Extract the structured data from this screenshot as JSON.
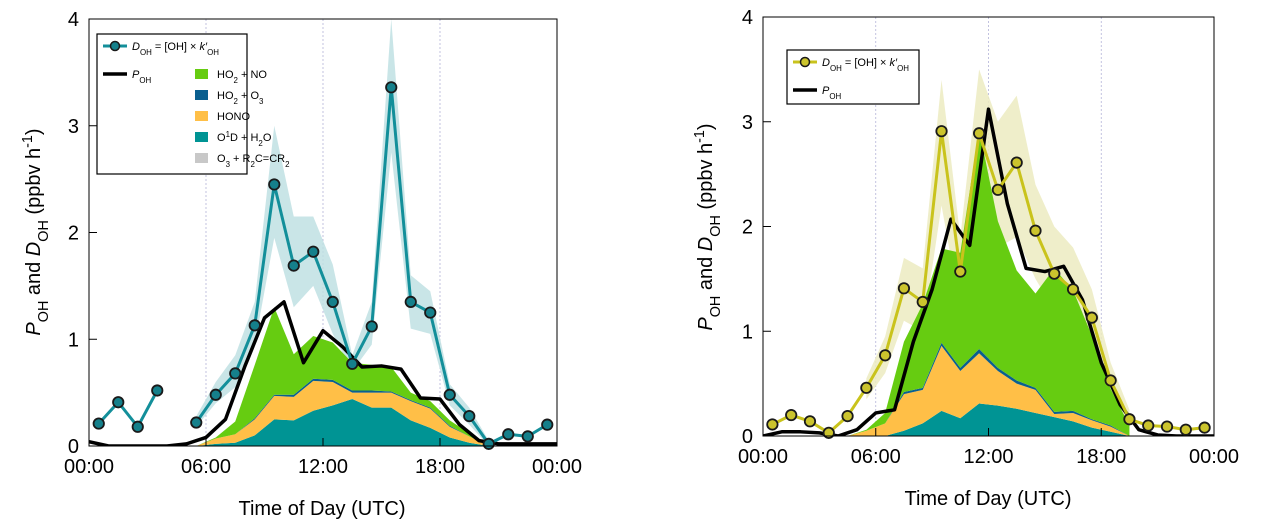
{
  "colors": {
    "left_dOH": "#138f9a",
    "left_dOH_band": "#bfe1e3",
    "left_marker_fill": "#15808b",
    "right_dOH": "#c9c31c",
    "right_dOH_band": "#ecebc1",
    "right_marker_fill": "#cbc42d",
    "pOH": "#000000",
    "ho2_no": "#66cc11",
    "ho2_o3": "#0a5f8f",
    "hono": "#ffbf47",
    "o1d_h2o": "#009494",
    "o3_alkene": "#c8c8c8",
    "grid": "#b4b4d8"
  },
  "chart_data": [
    {
      "type": "area",
      "xlabel": "Time of Day (UTC)",
      "ylabel_parts": [
        "P",
        "OH",
        " and ",
        "D",
        "OH",
        " (ppbv h",
        "-1",
        ")"
      ],
      "xlim": [
        0,
        24
      ],
      "ylim": [
        0,
        4
      ],
      "xticks": [
        0,
        6,
        12,
        18,
        24
      ],
      "xtick_labels": [
        "00:00",
        "06:00",
        "12:00",
        "18:00",
        "00:00"
      ],
      "yticks": [
        0,
        1,
        2,
        3,
        4
      ],
      "ytick_labels": [
        "0",
        "1",
        "2",
        "3",
        "4"
      ],
      "grid_x": true,
      "legend_placement": "top-left",
      "legend": {
        "dOH": [
          "D",
          "OH",
          " = [OH] × ",
          "k′",
          "OH"
        ],
        "pOH": [
          "P",
          "OH"
        ],
        "ho2_no": [
          "HO",
          "2",
          " + NO"
        ],
        "ho2_o3": [
          "HO",
          "2",
          " + O",
          "3"
        ],
        "hono": [
          "HONO"
        ],
        "o1d_h2o": [
          "O",
          "1",
          "D + H",
          "2",
          "O"
        ],
        "o3_alkene": [
          "O",
          "3",
          " + R",
          "2",
          "C=CR",
          "2"
        ]
      },
      "dOH": {
        "x": [
          0.5,
          1.5,
          2.5,
          3.5,
          5.5,
          6.5,
          7.5,
          8.5,
          9.5,
          10.5,
          11.5,
          12.5,
          13.5,
          14.5,
          15.5,
          16.5,
          17.5,
          18.5,
          19.5,
          20.5,
          21.5,
          22.5,
          23.5
        ],
        "y": [
          0.21,
          0.41,
          0.18,
          0.52,
          0.22,
          0.48,
          0.68,
          1.13,
          2.45,
          1.69,
          1.82,
          1.35,
          0.77,
          1.12,
          3.36,
          1.35,
          1.25,
          0.48,
          0.28,
          0.02,
          0.11,
          0.09,
          0.2
        ],
        "segments": [
          [
            0,
            3
          ],
          [
            4,
            22
          ]
        ],
        "band_x": [
          5.5,
          6.5,
          7.5,
          8.5,
          9.5,
          10.5,
          11.5,
          12.5,
          13.5,
          14.5,
          15.5,
          16.5,
          17.5,
          18.5,
          19.5,
          20.5
        ],
        "band_lo": [
          0.18,
          0.4,
          0.55,
          0.95,
          1.95,
          1.3,
          1.5,
          1.05,
          0.7,
          0.95,
          2.75,
          1.1,
          1.05,
          0.38,
          0.2,
          0.0
        ],
        "band_hi": [
          0.28,
          0.6,
          0.85,
          1.35,
          3.0,
          2.15,
          2.15,
          1.7,
          0.85,
          1.35,
          4.0,
          1.6,
          1.45,
          0.58,
          0.36,
          0.05
        ]
      },
      "pOH": {
        "x": [
          0,
          1,
          2,
          3,
          4,
          5,
          6,
          7,
          8,
          9,
          10,
          11,
          12,
          13,
          14,
          15,
          16,
          17,
          18,
          19,
          20,
          21,
          22,
          23,
          24
        ],
        "y": [
          0.04,
          0.0,
          0.0,
          0.0,
          0.0,
          0.02,
          0.08,
          0.25,
          0.75,
          1.2,
          1.35,
          0.78,
          1.08,
          0.93,
          0.74,
          0.75,
          0.72,
          0.45,
          0.44,
          0.2,
          0.05,
          0.02,
          0.02,
          0.02,
          0.02
        ]
      },
      "stack_x": [
        5.5,
        6.5,
        7.5,
        8.5,
        9.5,
        10.5,
        11.5,
        12.5,
        13.5,
        14.5,
        15.5,
        16.5,
        17.5,
        18.5,
        19.5,
        20.5
      ],
      "stacks": [
        {
          "key": "o1d_h2o",
          "values": [
            0.0,
            0.02,
            0.03,
            0.1,
            0.25,
            0.24,
            0.33,
            0.38,
            0.44,
            0.36,
            0.36,
            0.24,
            0.17,
            0.08,
            0.03,
            0.0
          ]
        },
        {
          "key": "hono",
          "values": [
            0.0,
            0.05,
            0.08,
            0.15,
            0.22,
            0.22,
            0.28,
            0.22,
            0.06,
            0.14,
            0.14,
            0.18,
            0.18,
            0.1,
            0.06,
            0.0
          ]
        },
        {
          "key": "ho2_o3",
          "values": [
            0.0,
            0.0,
            0.0,
            0.01,
            0.01,
            0.02,
            0.02,
            0.02,
            0.02,
            0.02,
            0.01,
            0.01,
            0.01,
            0.01,
            0.0,
            0.0
          ]
        },
        {
          "key": "ho2_no",
          "values": [
            0.0,
            0.01,
            0.12,
            0.5,
            0.82,
            0.38,
            0.4,
            0.35,
            0.26,
            0.24,
            0.23,
            0.07,
            0.06,
            0.05,
            0.03,
            0.0
          ]
        }
      ]
    },
    {
      "type": "area",
      "xlabel": "Time of Day (UTC)",
      "ylabel_parts": [
        "P",
        "OH",
        " and ",
        "D",
        "OH",
        " (ppbv h",
        "-1",
        ")"
      ],
      "xlim": [
        0,
        24
      ],
      "ylim": [
        0,
        4
      ],
      "xticks": [
        0,
        6,
        12,
        18,
        24
      ],
      "xtick_labels": [
        "00:00",
        "06:00",
        "12:00",
        "18:00",
        "00:00"
      ],
      "yticks": [
        0,
        1,
        2,
        3,
        4
      ],
      "ytick_labels": [
        "0",
        "1",
        "2",
        "3",
        "4"
      ],
      "grid_x": true,
      "legend_placement": "top-left",
      "legend": {
        "dOH": [
          "D",
          "OH",
          " = [OH] × ",
          "k′",
          "OH"
        ],
        "pOH": [
          "P",
          "OH"
        ]
      },
      "dOH": {
        "x": [
          0.5,
          1.5,
          2.5,
          3.5,
          4.5,
          5.5,
          6.5,
          7.5,
          8.5,
          9.5,
          10.5,
          11.5,
          12.5,
          13.5,
          14.5,
          15.5,
          16.5,
          17.5,
          18.5,
          19.5,
          20.5,
          21.5,
          22.5,
          23.5
        ],
        "y": [
          0.11,
          0.2,
          0.14,
          0.03,
          0.19,
          0.46,
          0.77,
          1.41,
          1.28,
          2.91,
          1.57,
          2.89,
          2.35,
          2.61,
          1.96,
          1.55,
          1.4,
          1.13,
          0.53,
          0.16,
          0.1,
          0.09,
          0.06,
          0.08
        ],
        "segments": [
          [
            0,
            23
          ]
        ],
        "band_x": [
          5.5,
          6.5,
          7.5,
          8.5,
          9.5,
          10.5,
          11.5,
          12.5,
          13.5,
          14.5,
          15.5,
          16.5,
          17.5,
          18.5,
          19.5
        ],
        "band_lo": [
          0.35,
          0.6,
          1.1,
          1.0,
          2.2,
          1.2,
          2.2,
          1.8,
          1.9,
          1.5,
          1.2,
          1.1,
          0.9,
          0.4,
          0.1
        ],
        "band_hi": [
          0.55,
          0.95,
          1.7,
          1.6,
          3.4,
          1.9,
          3.5,
          3.0,
          3.25,
          2.4,
          2.0,
          1.8,
          1.4,
          0.7,
          0.25
        ]
      },
      "pOH": {
        "x": [
          0,
          1,
          2,
          3,
          4,
          5,
          6,
          7,
          8,
          9,
          10,
          11,
          12,
          13,
          14,
          15,
          16,
          17,
          18,
          19,
          20,
          21,
          22,
          23,
          24
        ],
        "y": [
          0.0,
          0.04,
          0.04,
          0.03,
          0.0,
          0.06,
          0.22,
          0.25,
          0.9,
          1.4,
          2.07,
          1.82,
          3.12,
          2.22,
          1.6,
          1.57,
          1.62,
          1.3,
          0.7,
          0.3,
          0.06,
          0.01,
          0.0,
          0.0,
          0.0
        ]
      },
      "stack_x": [
        4.5,
        5.5,
        6.5,
        7.5,
        8.5,
        9.5,
        10.5,
        11.5,
        12.5,
        13.5,
        14.5,
        15.5,
        16.5,
        17.5,
        18.5,
        19.5
      ],
      "stacks": [
        {
          "key": "o1d_h2o",
          "values": [
            0.0,
            0.0,
            0.0,
            0.05,
            0.12,
            0.24,
            0.17,
            0.31,
            0.29,
            0.26,
            0.22,
            0.18,
            0.14,
            0.08,
            0.04,
            0.0
          ]
        },
        {
          "key": "hono",
          "values": [
            0.0,
            0.05,
            0.12,
            0.35,
            0.32,
            0.62,
            0.45,
            0.48,
            0.33,
            0.24,
            0.22,
            0.03,
            0.08,
            0.07,
            0.05,
            0.0
          ]
        },
        {
          "key": "ho2_o3",
          "values": [
            0.0,
            0.0,
            0.0,
            0.02,
            0.02,
            0.03,
            0.03,
            0.04,
            0.03,
            0.03,
            0.02,
            0.02,
            0.02,
            0.01,
            0.01,
            0.0
          ]
        },
        {
          "key": "ho2_no",
          "values": [
            0.0,
            0.01,
            0.1,
            0.48,
            0.8,
            0.9,
            1.1,
            2.1,
            1.4,
            1.05,
            0.9,
            1.37,
            1.15,
            0.8,
            0.35,
            0.1
          ]
        }
      ]
    }
  ]
}
